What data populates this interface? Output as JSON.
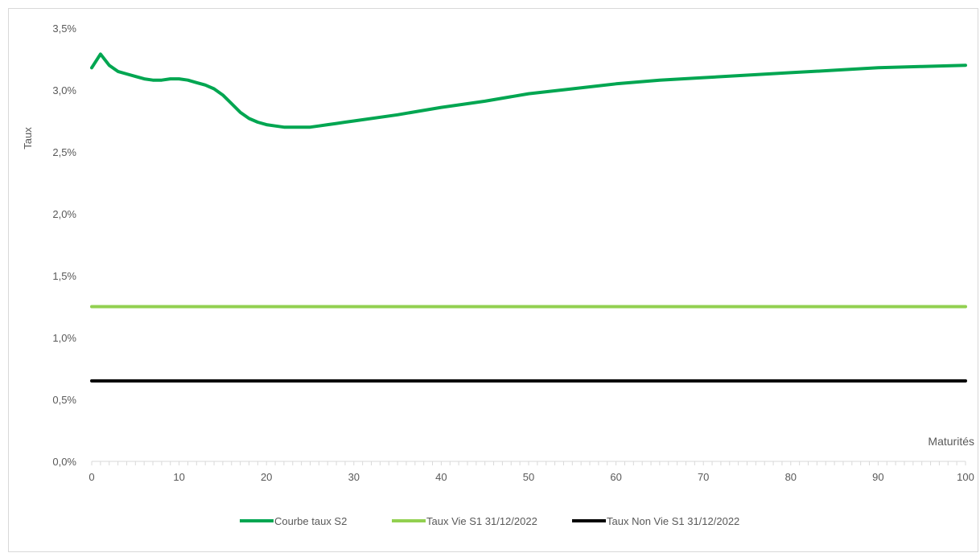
{
  "chart_data": {
    "type": "line",
    "ylabel": "Taux",
    "xlabel": "Maturités",
    "xlim": [
      0,
      100
    ],
    "ylim": [
      0,
      0.035
    ],
    "x_ticks": [
      0,
      10,
      20,
      30,
      40,
      50,
      60,
      70,
      80,
      90,
      100
    ],
    "y_ticks": [
      "0,0%",
      "0,5%",
      "1,0%",
      "1,5%",
      "2,0%",
      "2,5%",
      "3,0%",
      "3,5%"
    ],
    "grid": false,
    "legend_position": "bottom",
    "series": [
      {
        "name": "Courbe taux S2",
        "color": "#00a651",
        "x": [
          0,
          1,
          2,
          3,
          4,
          5,
          6,
          7,
          8,
          9,
          10,
          11,
          12,
          13,
          14,
          15,
          16,
          17,
          18,
          19,
          20,
          21,
          22,
          23,
          24,
          25,
          26,
          27,
          28,
          29,
          30,
          35,
          40,
          45,
          50,
          55,
          60,
          65,
          70,
          75,
          80,
          85,
          90,
          95,
          100
        ],
        "values": [
          0.0318,
          0.0329,
          0.032,
          0.0315,
          0.0313,
          0.0311,
          0.0309,
          0.0308,
          0.0308,
          0.0309,
          0.0309,
          0.0308,
          0.0306,
          0.0304,
          0.0301,
          0.0296,
          0.0289,
          0.0282,
          0.0277,
          0.0274,
          0.0272,
          0.0271,
          0.027,
          0.027,
          0.027,
          0.027,
          0.0271,
          0.0272,
          0.0273,
          0.0274,
          0.0275,
          0.028,
          0.0286,
          0.0291,
          0.0297,
          0.0301,
          0.0305,
          0.0308,
          0.031,
          0.0312,
          0.0314,
          0.0316,
          0.0318,
          0.0319,
          0.032
        ]
      },
      {
        "name": "Taux Vie S1 31/12/2022",
        "color": "#92d050",
        "x": [
          0,
          100
        ],
        "values": [
          0.0125,
          0.0125
        ]
      },
      {
        "name": "Taux Non Vie S1 31/12/2022",
        "color": "#000000",
        "x": [
          0,
          100
        ],
        "values": [
          0.0065,
          0.0065
        ]
      }
    ]
  }
}
